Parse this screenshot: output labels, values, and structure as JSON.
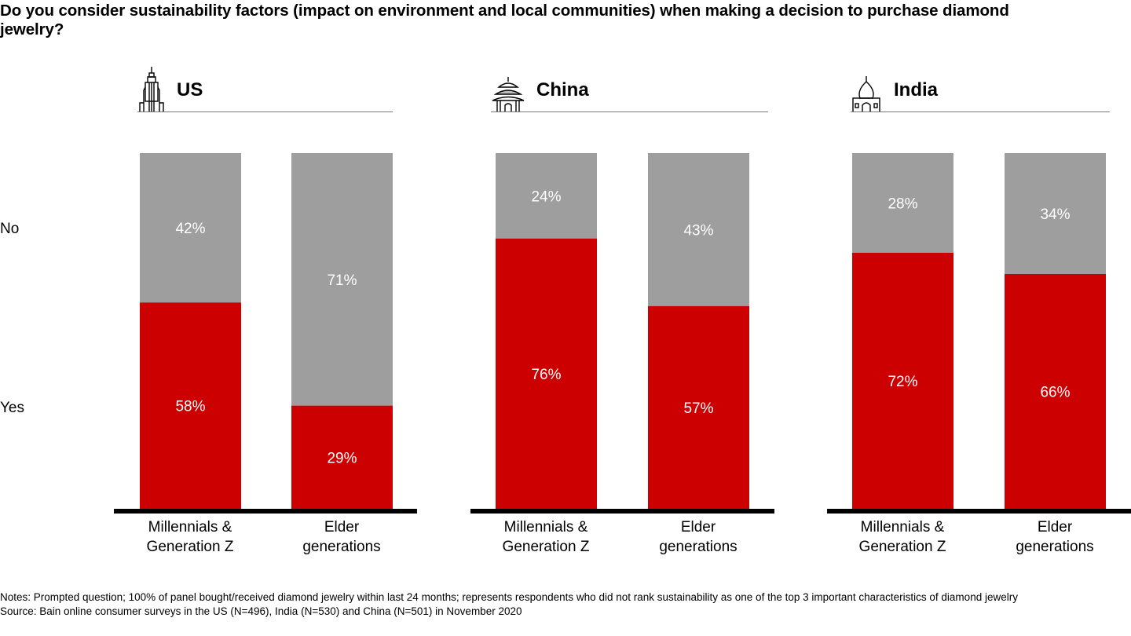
{
  "title": "Do you consider sustainability factors (impact on environment and local communities) when making a decision to purchase diamond jewelry?",
  "row_labels": {
    "no": "No",
    "yes": "Yes"
  },
  "colors": {
    "no": "#9E9E9E",
    "yes": "#CC0000",
    "axis": "#000000"
  },
  "panels": [
    {
      "name": "US",
      "icon": "skyscraper-icon"
    },
    {
      "name": "China",
      "icon": "temple-icon"
    },
    {
      "name": "India",
      "icon": "taj-mahal-icon"
    }
  ],
  "notes": "Notes: Prompted question; 100% of panel bought/received diamond jewelry within last 24 months; represents respondents who did not rank sustainability as one of the top 3 important characteristics of diamond jewelry",
  "source": "Source: Bain online consumer surveys in the US (N=496), India (N=530) and China (N=501) in November 2020",
  "chart_data": {
    "type": "bar",
    "stacked": true,
    "percent": true,
    "title": "Do you consider sustainability factors (impact on environment and local communities) when making a decision to purchase diamond jewelry?",
    "ylim": [
      0,
      100
    ],
    "legend": [
      "Yes",
      "No"
    ],
    "groups": [
      {
        "name": "US",
        "categories": [
          "Millennials & Generation Z",
          "Elder generations"
        ],
        "series": [
          {
            "name": "Yes",
            "values": [
              58,
              29
            ]
          },
          {
            "name": "No",
            "values": [
              42,
              71
            ]
          }
        ]
      },
      {
        "name": "China",
        "categories": [
          "Millennials & Generation Z",
          "Elder generations"
        ],
        "series": [
          {
            "name": "Yes",
            "values": [
              76,
              57
            ]
          },
          {
            "name": "No",
            "values": [
              24,
              43
            ]
          }
        ]
      },
      {
        "name": "India",
        "categories": [
          "Millennials & Generation Z",
          "Elder generations"
        ],
        "series": [
          {
            "name": "Yes",
            "values": [
              72,
              66
            ]
          },
          {
            "name": "No",
            "values": [
              28,
              34
            ]
          }
        ]
      }
    ],
    "category_labels": [
      [
        "Millennials &",
        "Generation Z"
      ],
      [
        "Elder",
        "generations"
      ]
    ]
  }
}
